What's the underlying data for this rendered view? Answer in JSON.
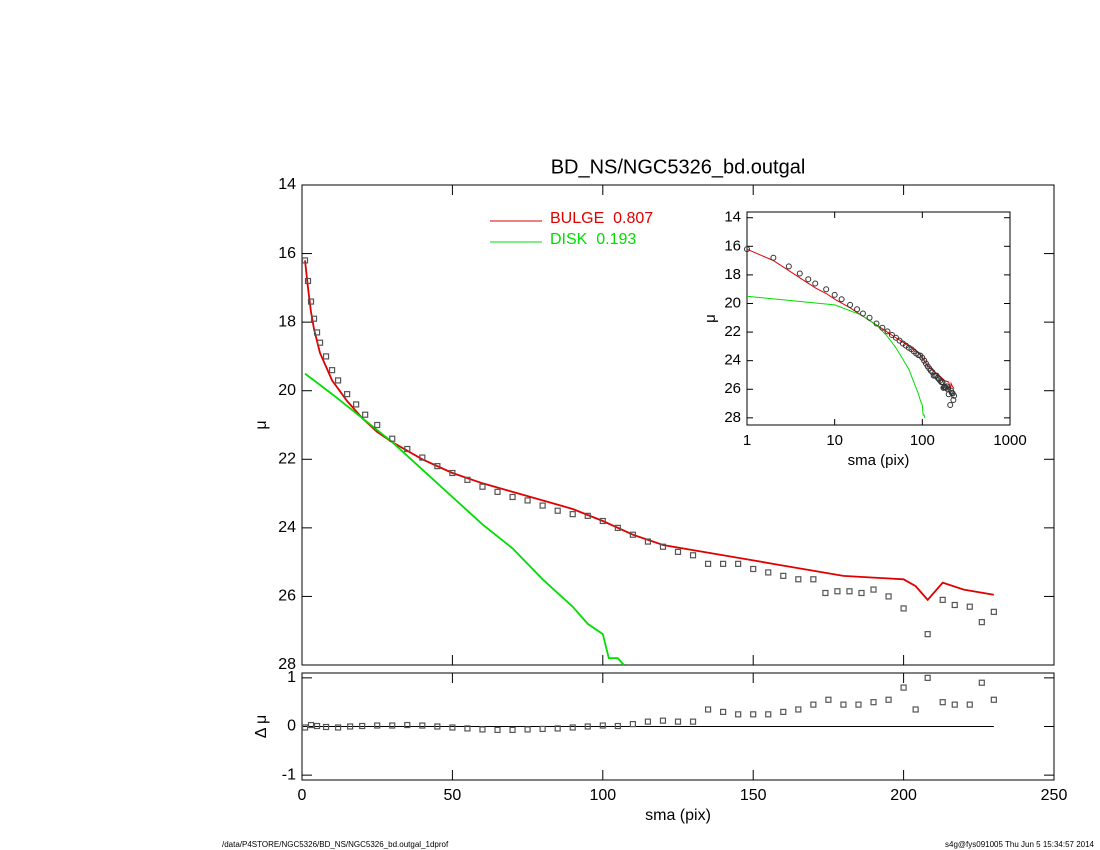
{
  "footer_left": "/data/P4STORE/NGC5326/BD_NS/NGC5326_bd.outgal_1dprof",
  "footer_right": "s4g@fys091005  Thu Jun  5 15:34:57 2014",
  "chart_data": [
    {
      "type": "scatter",
      "title": "BD_NS/NGC5326_bd.outgal",
      "ylabel": "μ",
      "xlim": [
        0,
        250
      ],
      "ylim": [
        28,
        14
      ],
      "xticks": [
        0,
        50,
        100,
        150,
        200,
        250
      ],
      "yticks": [
        14,
        16,
        18,
        20,
        22,
        24,
        26,
        28
      ],
      "points": {
        "x": [
          1,
          2,
          3,
          4,
          5,
          6,
          8,
          10,
          12,
          15,
          18,
          21,
          25,
          30,
          35,
          40,
          45,
          50,
          55,
          60,
          65,
          70,
          75,
          80,
          85,
          90,
          95,
          100,
          105,
          110,
          115,
          120,
          125,
          130,
          135,
          140,
          145,
          150,
          155,
          160,
          165,
          170,
          174,
          178,
          182,
          186,
          190,
          195,
          200,
          208,
          213,
          217,
          222,
          226,
          230
        ],
        "y": [
          16.2,
          16.8,
          17.4,
          17.9,
          18.3,
          18.6,
          19.0,
          19.4,
          19.7,
          20.1,
          20.4,
          20.7,
          21.0,
          21.4,
          21.7,
          21.95,
          22.2,
          22.4,
          22.6,
          22.8,
          22.95,
          23.1,
          23.2,
          23.35,
          23.5,
          23.6,
          23.65,
          23.8,
          24.0,
          24.2,
          24.4,
          24.55,
          24.7,
          24.8,
          25.05,
          25.05,
          25.05,
          25.2,
          25.3,
          25.4,
          25.5,
          25.5,
          25.9,
          25.85,
          25.85,
          25.9,
          25.8,
          26.0,
          26.35,
          27.1,
          26.1,
          26.25,
          26.3,
          26.75,
          26.45
        ]
      },
      "series": [
        {
          "name": "BULGE  0.807",
          "color": "#e00000",
          "x": [
            1,
            2,
            3,
            4,
            6,
            8,
            10,
            15,
            20,
            25,
            30,
            40,
            50,
            60,
            70,
            80,
            90,
            100,
            110,
            120,
            130,
            140,
            150,
            160,
            170,
            180,
            190,
            200,
            204,
            208,
            213,
            220,
            230
          ],
          "values": [
            16.2,
            17.0,
            17.7,
            18.2,
            18.9,
            19.3,
            19.7,
            20.3,
            20.8,
            21.2,
            21.5,
            22.0,
            22.4,
            22.7,
            22.95,
            23.2,
            23.45,
            23.8,
            24.2,
            24.5,
            24.65,
            24.8,
            24.95,
            25.1,
            25.25,
            25.4,
            25.45,
            25.5,
            25.7,
            26.1,
            25.6,
            25.8,
            25.95
          ]
        },
        {
          "name": "DISK  0.193",
          "color": "#00dd00",
          "x": [
            1,
            10,
            20,
            30,
            40,
            50,
            60,
            70,
            80,
            90,
            95,
            100,
            102,
            105,
            107
          ],
          "values": [
            19.5,
            20.1,
            20.8,
            21.5,
            22.3,
            23.1,
            23.9,
            24.6,
            25.5,
            26.3,
            26.8,
            27.1,
            27.8,
            27.8,
            28.0
          ]
        }
      ]
    },
    {
      "type": "scatter",
      "ylabel": "Δ μ",
      "xlabel": "sma (pix)",
      "xlim": [
        0,
        250
      ],
      "ylim": [
        -1.1,
        1.1
      ],
      "xticks": [
        0,
        50,
        100,
        150,
        200,
        250
      ],
      "yticks": [
        -1,
        0,
        1
      ],
      "points": {
        "x": [
          1,
          3,
          5,
          8,
          12,
          16,
          20,
          25,
          30,
          35,
          40,
          45,
          50,
          55,
          60,
          65,
          70,
          75,
          80,
          85,
          90,
          95,
          100,
          105,
          110,
          115,
          120,
          125,
          130,
          135,
          140,
          145,
          150,
          155,
          160,
          165,
          170,
          175,
          180,
          185,
          190,
          195,
          200,
          204,
          208,
          213,
          217,
          222,
          226,
          230
        ],
        "y": [
          -0.02,
          0.03,
          0.01,
          -0.01,
          -0.02,
          0.0,
          0.01,
          0.02,
          0.02,
          0.03,
          0.02,
          0.0,
          -0.02,
          -0.04,
          -0.06,
          -0.07,
          -0.07,
          -0.06,
          -0.05,
          -0.04,
          -0.02,
          0.0,
          0.02,
          0.01,
          0.05,
          0.1,
          0.12,
          0.1,
          0.1,
          0.35,
          0.3,
          0.25,
          0.25,
          0.25,
          0.3,
          0.35,
          0.45,
          0.55,
          0.45,
          0.45,
          0.5,
          0.55,
          0.8,
          0.35,
          1.0,
          0.5,
          0.45,
          0.45,
          0.9,
          0.55
        ]
      }
    },
    {
      "type": "line",
      "log_x": true,
      "xlabel": "sma (pix)",
      "ylabel": "μ",
      "xlim": [
        1,
        1000
      ],
      "ylim": [
        28.5,
        13.6
      ],
      "xticks": [
        1,
        10,
        100,
        1000
      ],
      "yticks": [
        14,
        16,
        18,
        20,
        22,
        24,
        26,
        28
      ]
    }
  ]
}
